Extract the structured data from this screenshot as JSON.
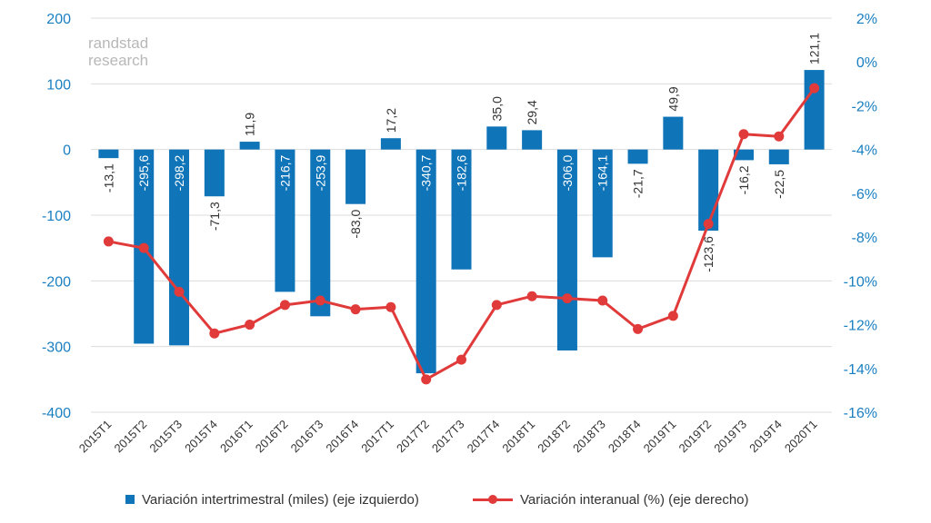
{
  "chart_data": {
    "type": "bar+line",
    "categories": [
      "2015T1",
      "2015T2",
      "2015T3",
      "2015T4",
      "2016T1",
      "2016T2",
      "2016T3",
      "2016T4",
      "2017T1",
      "2017T2",
      "2017T3",
      "2017T4",
      "2018T1",
      "2018T2",
      "2018T3",
      "2018T4",
      "2019T1",
      "2019T2",
      "2019T3",
      "2019T4",
      "2020T1"
    ],
    "series": [
      {
        "name": "Variación intertrimestral (miles) (eje izquierdo)",
        "type": "bar",
        "axis": "left",
        "color": "#0f74b8",
        "values": [
          -13.1,
          -295.6,
          -298.2,
          -71.3,
          11.9,
          -216.7,
          -253.9,
          -83.0,
          17.2,
          -340.7,
          -182.6,
          35.0,
          29.4,
          -306.0,
          -164.1,
          -21.7,
          49.9,
          -123.6,
          -16.2,
          -22.5,
          121.1
        ],
        "labels": [
          "-13,1",
          "-295,6",
          "-298,2",
          "-71,3",
          "11,9",
          "-216,7",
          "-253,9",
          "-83,0",
          "17,2",
          "-340,7",
          "-182,6",
          "35,0",
          "29,4",
          "-306,0",
          "-164,1",
          "-21,7",
          "49,9",
          "-123,6",
          "-16,2",
          "-22,5",
          "121,1"
        ]
      },
      {
        "name": "Variación interanual (%) (eje derecho)",
        "type": "line",
        "axis": "right",
        "color": "#e03a3a",
        "values": [
          -8.2,
          -8.5,
          -10.5,
          -12.4,
          -12.0,
          -11.1,
          -10.9,
          -11.3,
          -11.2,
          -14.5,
          -13.6,
          -11.1,
          -10.7,
          -10.8,
          -10.9,
          -12.2,
          -11.6,
          -7.4,
          -3.3,
          -3.4,
          -1.2
        ]
      }
    ],
    "left_axis": {
      "min": -400,
      "max": 200,
      "ticks": [
        200,
        100,
        0,
        -100,
        -200,
        -300,
        -400
      ],
      "tick_labels": [
        "200",
        "100",
        "0",
        "-100",
        "-200",
        "-300",
        "-400"
      ]
    },
    "right_axis": {
      "min": -16,
      "max": 2,
      "ticks": [
        2,
        0,
        -2,
        -4,
        -6,
        -8,
        -10,
        -12,
        -14,
        -16
      ],
      "tick_labels": [
        "2%",
        "0%",
        "-2%",
        "-4%",
        "-6%",
        "-8%",
        "-10%",
        "-12%",
        "-14%",
        "-16%"
      ]
    },
    "legend_position": "bottom",
    "grid": true
  },
  "watermark": {
    "line1": "randstad",
    "line2": "research"
  },
  "colors": {
    "axis_text": "#1a7fc1",
    "grid": "#dcdcdc",
    "bar": "#0f74b8",
    "line": "#e03a3a",
    "watermark": "#b8b8b8",
    "category_text": "#333333"
  }
}
